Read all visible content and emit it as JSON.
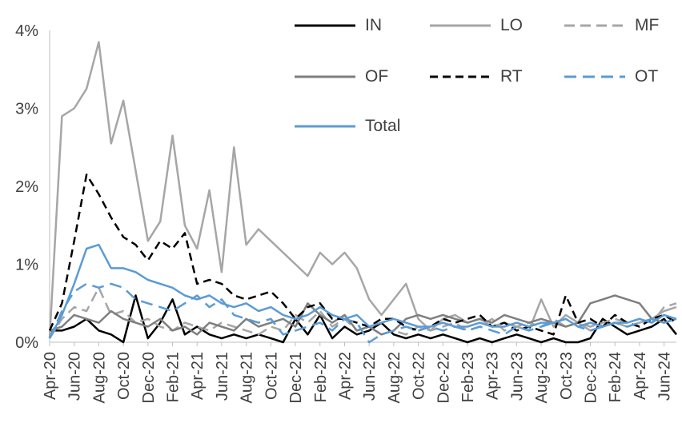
{
  "chart_data": {
    "type": "line",
    "title": "",
    "xlabel": "",
    "ylabel": "",
    "grid": false,
    "legend_position": "top",
    "ylim": [
      0,
      4
    ],
    "y_tick_labels": [
      "0%",
      "1%",
      "2%",
      "3%",
      "4%"
    ],
    "x_tick_every": 2,
    "axis_color": "#bfbfbf",
    "text_color": "#404040",
    "x": [
      "Apr-20",
      "May-20",
      "Jun-20",
      "Jul-20",
      "Aug-20",
      "Sep-20",
      "Oct-20",
      "Nov-20",
      "Dec-20",
      "Jan-21",
      "Feb-21",
      "Mar-21",
      "Apr-21",
      "May-21",
      "Jun-21",
      "Jul-21",
      "Aug-21",
      "Sep-21",
      "Oct-21",
      "Nov-21",
      "Dec-21",
      "Jan-22",
      "Feb-22",
      "Mar-22",
      "Apr-22",
      "May-22",
      "Jun-22",
      "Jul-22",
      "Aug-22",
      "Sep-22",
      "Oct-22",
      "Nov-22",
      "Dec-22",
      "Jan-23",
      "Feb-23",
      "Mar-23",
      "Apr-23",
      "May-23",
      "Jun-23",
      "Jul-23",
      "Aug-23",
      "Sep-23",
      "Oct-23",
      "Nov-23",
      "Dec-23",
      "Jan-24",
      "Feb-24",
      "Mar-24",
      "Apr-24",
      "May-24",
      "Jun-24",
      "Jul-24"
    ],
    "series": [
      {
        "name": "IN",
        "color": "#000000",
        "style": "solid",
        "dash": "",
        "values": [
          0.15,
          0.15,
          0.2,
          0.3,
          0.15,
          0.1,
          0.0,
          0.6,
          0.05,
          0.25,
          0.55,
          0.1,
          0.2,
          0.1,
          0.05,
          0.1,
          0.05,
          0.1,
          0.05,
          0.0,
          0.3,
          0.1,
          0.35,
          0.05,
          0.2,
          0.1,
          0.15,
          0.25,
          0.1,
          0.05,
          0.1,
          0.05,
          0.1,
          0.05,
          0.0,
          0.05,
          0.0,
          0.05,
          0.1,
          0.05,
          0.0,
          0.05,
          0.0,
          0.0,
          0.05,
          0.3,
          0.2,
          0.1,
          0.15,
          0.2,
          0.3,
          0.1
        ]
      },
      {
        "name": "LO",
        "color": "#a6a6a6",
        "style": "solid",
        "dash": "",
        "values": [
          0.05,
          2.9,
          3.0,
          3.25,
          3.85,
          2.55,
          3.1,
          2.2,
          1.3,
          1.55,
          2.65,
          1.5,
          1.2,
          1.95,
          0.9,
          2.5,
          1.25,
          1.45,
          1.3,
          1.15,
          1.0,
          0.85,
          1.15,
          1.0,
          1.15,
          0.95,
          0.55,
          0.35,
          0.55,
          0.75,
          0.3,
          0.15,
          0.3,
          0.35,
          0.25,
          0.3,
          0.2,
          0.25,
          0.2,
          0.15,
          0.55,
          0.2,
          0.35,
          0.25,
          0.15,
          0.2,
          0.25,
          0.2,
          0.25,
          0.3,
          0.4,
          0.45
        ]
      },
      {
        "name": "MF",
        "color": "#a6a6a6",
        "style": "dashed",
        "dash": "13 7",
        "values": [
          0.05,
          0.3,
          0.45,
          0.4,
          0.7,
          0.35,
          0.4,
          0.25,
          0.3,
          0.2,
          0.15,
          0.25,
          0.2,
          0.15,
          0.25,
          0.2,
          0.15,
          0.1,
          0.2,
          0.15,
          0.35,
          0.25,
          0.4,
          0.2,
          0.3,
          0.15,
          0.2,
          0.1,
          0.15,
          0.1,
          0.2,
          0.15,
          0.2,
          0.25,
          0.15,
          0.2,
          0.3,
          0.15,
          0.2,
          0.25,
          0.2,
          0.3,
          0.2,
          0.25,
          0.2,
          0.25,
          0.3,
          0.25,
          0.3,
          0.25,
          0.45,
          0.5
        ]
      },
      {
        "name": "OF",
        "color": "#7f7f7f",
        "style": "solid",
        "dash": "",
        "values": [
          0.15,
          0.2,
          0.35,
          0.3,
          0.25,
          0.4,
          0.3,
          0.25,
          0.2,
          0.3,
          0.15,
          0.2,
          0.1,
          0.25,
          0.2,
          0.15,
          0.3,
          0.2,
          0.25,
          0.3,
          0.2,
          0.5,
          0.35,
          0.25,
          0.35,
          0.15,
          0.2,
          0.1,
          0.15,
          0.3,
          0.35,
          0.3,
          0.35,
          0.3,
          0.25,
          0.3,
          0.25,
          0.35,
          0.3,
          0.25,
          0.3,
          0.25,
          0.2,
          0.25,
          0.5,
          0.55,
          0.6,
          0.55,
          0.5,
          0.3,
          0.25,
          0.3
        ]
      },
      {
        "name": "RT",
        "color": "#000000",
        "style": "dashed",
        "dash": "10 6",
        "values": [
          0.15,
          0.5,
          1.3,
          2.15,
          1.9,
          1.6,
          1.35,
          1.25,
          1.05,
          1.3,
          1.2,
          1.4,
          0.75,
          0.8,
          0.75,
          0.6,
          0.55,
          0.6,
          0.65,
          0.5,
          0.3,
          0.45,
          0.5,
          0.3,
          0.3,
          0.25,
          0.2,
          0.3,
          0.3,
          0.2,
          0.15,
          0.2,
          0.3,
          0.25,
          0.3,
          0.35,
          0.2,
          0.25,
          0.15,
          0.2,
          0.15,
          0.1,
          0.6,
          0.25,
          0.3,
          0.2,
          0.35,
          0.25,
          0.2,
          0.3,
          0.35,
          0.25
        ]
      },
      {
        "name": "OT",
        "color": "#5b9bd5",
        "style": "dashed",
        "dash": "15 8",
        "values": [
          0.05,
          0.4,
          0.65,
          0.75,
          0.7,
          0.75,
          0.7,
          0.55,
          0.5,
          0.45,
          0.4,
          0.5,
          0.6,
          0.45,
          0.55,
          0.35,
          0.3,
          0.25,
          0.3,
          0.1,
          0.15,
          0.2,
          0.25,
          0.15,
          0.3,
          0.25,
          0.0,
          0.1,
          0.15,
          0.2,
          0.15,
          0.2,
          0.15,
          0.2,
          0.15,
          0.2,
          0.15,
          0.1,
          0.2,
          0.15,
          0.2,
          0.25,
          0.3,
          0.2,
          0.15,
          0.2,
          0.25,
          0.2,
          0.25,
          0.3,
          0.25,
          0.3
        ]
      },
      {
        "name": "Total",
        "color": "#5b9bd5",
        "style": "solid",
        "dash": "",
        "values": [
          0.05,
          0.35,
          0.75,
          1.2,
          1.25,
          0.95,
          0.95,
          0.9,
          0.8,
          0.75,
          0.7,
          0.6,
          0.55,
          0.6,
          0.5,
          0.45,
          0.5,
          0.4,
          0.45,
          0.35,
          0.3,
          0.35,
          0.45,
          0.35,
          0.3,
          0.35,
          0.2,
          0.25,
          0.3,
          0.25,
          0.2,
          0.2,
          0.25,
          0.2,
          0.2,
          0.25,
          0.2,
          0.2,
          0.25,
          0.2,
          0.25,
          0.25,
          0.3,
          0.2,
          0.25,
          0.2,
          0.25,
          0.25,
          0.3,
          0.25,
          0.35,
          0.3
        ]
      }
    ]
  }
}
